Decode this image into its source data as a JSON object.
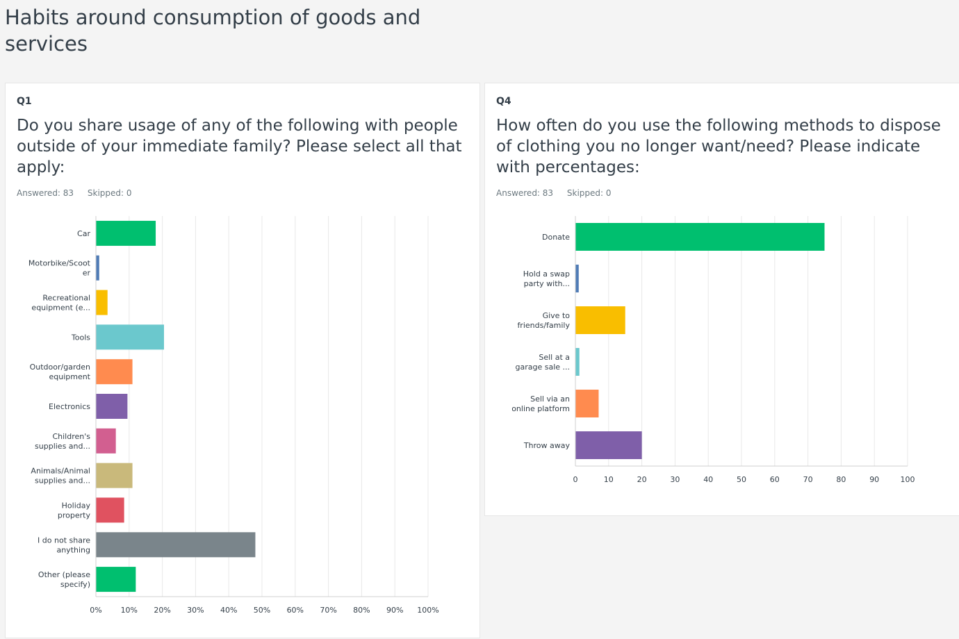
{
  "page": {
    "title": "Habits around consumption of goods and services"
  },
  "questions": [
    {
      "number": "Q1",
      "text": "Do you share usage of any of the following with people outside of your immediate family? Please select all that apply:",
      "answered": "Answered: 83",
      "skipped": "Skipped: 0"
    },
    {
      "number": "Q4",
      "text": "How often do you use the following methods to dispose of clothing you no longer want/need? Please indicate with percentages:",
      "answered": "Answered: 83",
      "skipped": "Skipped: 0"
    }
  ],
  "chart_data": [
    {
      "type": "bar",
      "orientation": "horizontal",
      "categories": [
        [
          "Car"
        ],
        [
          "Motorbike/Scoot",
          "er"
        ],
        [
          "Recreational",
          "equipment (e..."
        ],
        [
          "Tools"
        ],
        [
          "Outdoor/garden",
          "equipment"
        ],
        [
          "Electronics"
        ],
        [
          "Children's",
          "supplies and..."
        ],
        [
          "Animals/Animal",
          "supplies and..."
        ],
        [
          "Holiday",
          "property"
        ],
        [
          "I do not share",
          "anything"
        ],
        [
          "Other (please",
          "specify)"
        ]
      ],
      "values": [
        18,
        1,
        3.5,
        20.5,
        11,
        9.5,
        6,
        11,
        8.5,
        48,
        12
      ],
      "colors": [
        "#00bf6f",
        "#507cb6",
        "#f9be00",
        "#6bc8cd",
        "#ff8b4f",
        "#7f5fa9",
        "#d25f90",
        "#c9b97b",
        "#e05260",
        "#7a858b",
        "#00bf6f"
      ],
      "xlim": [
        0,
        100
      ],
      "ticks": [
        "0%",
        "10%",
        "20%",
        "30%",
        "40%",
        "50%",
        "60%",
        "70%",
        "80%",
        "90%",
        "100%"
      ],
      "grid": true
    },
    {
      "type": "bar",
      "orientation": "horizontal",
      "categories": [
        [
          "Donate"
        ],
        [
          "Hold a swap",
          "party with..."
        ],
        [
          "Give to",
          "friends/family"
        ],
        [
          "Sell at a",
          "garage sale ..."
        ],
        [
          "Sell via an",
          "online platform"
        ],
        [
          "Throw away"
        ]
      ],
      "values": [
        75,
        1,
        15,
        1.2,
        7,
        20
      ],
      "colors": [
        "#00bf6f",
        "#507cb6",
        "#f9be00",
        "#6bc8cd",
        "#ff8b4f",
        "#7f5fa9"
      ],
      "xlim": [
        0,
        100
      ],
      "ticks": [
        "0",
        "10",
        "20",
        "30",
        "40",
        "50",
        "60",
        "70",
        "80",
        "90",
        "100"
      ],
      "grid": true
    }
  ]
}
